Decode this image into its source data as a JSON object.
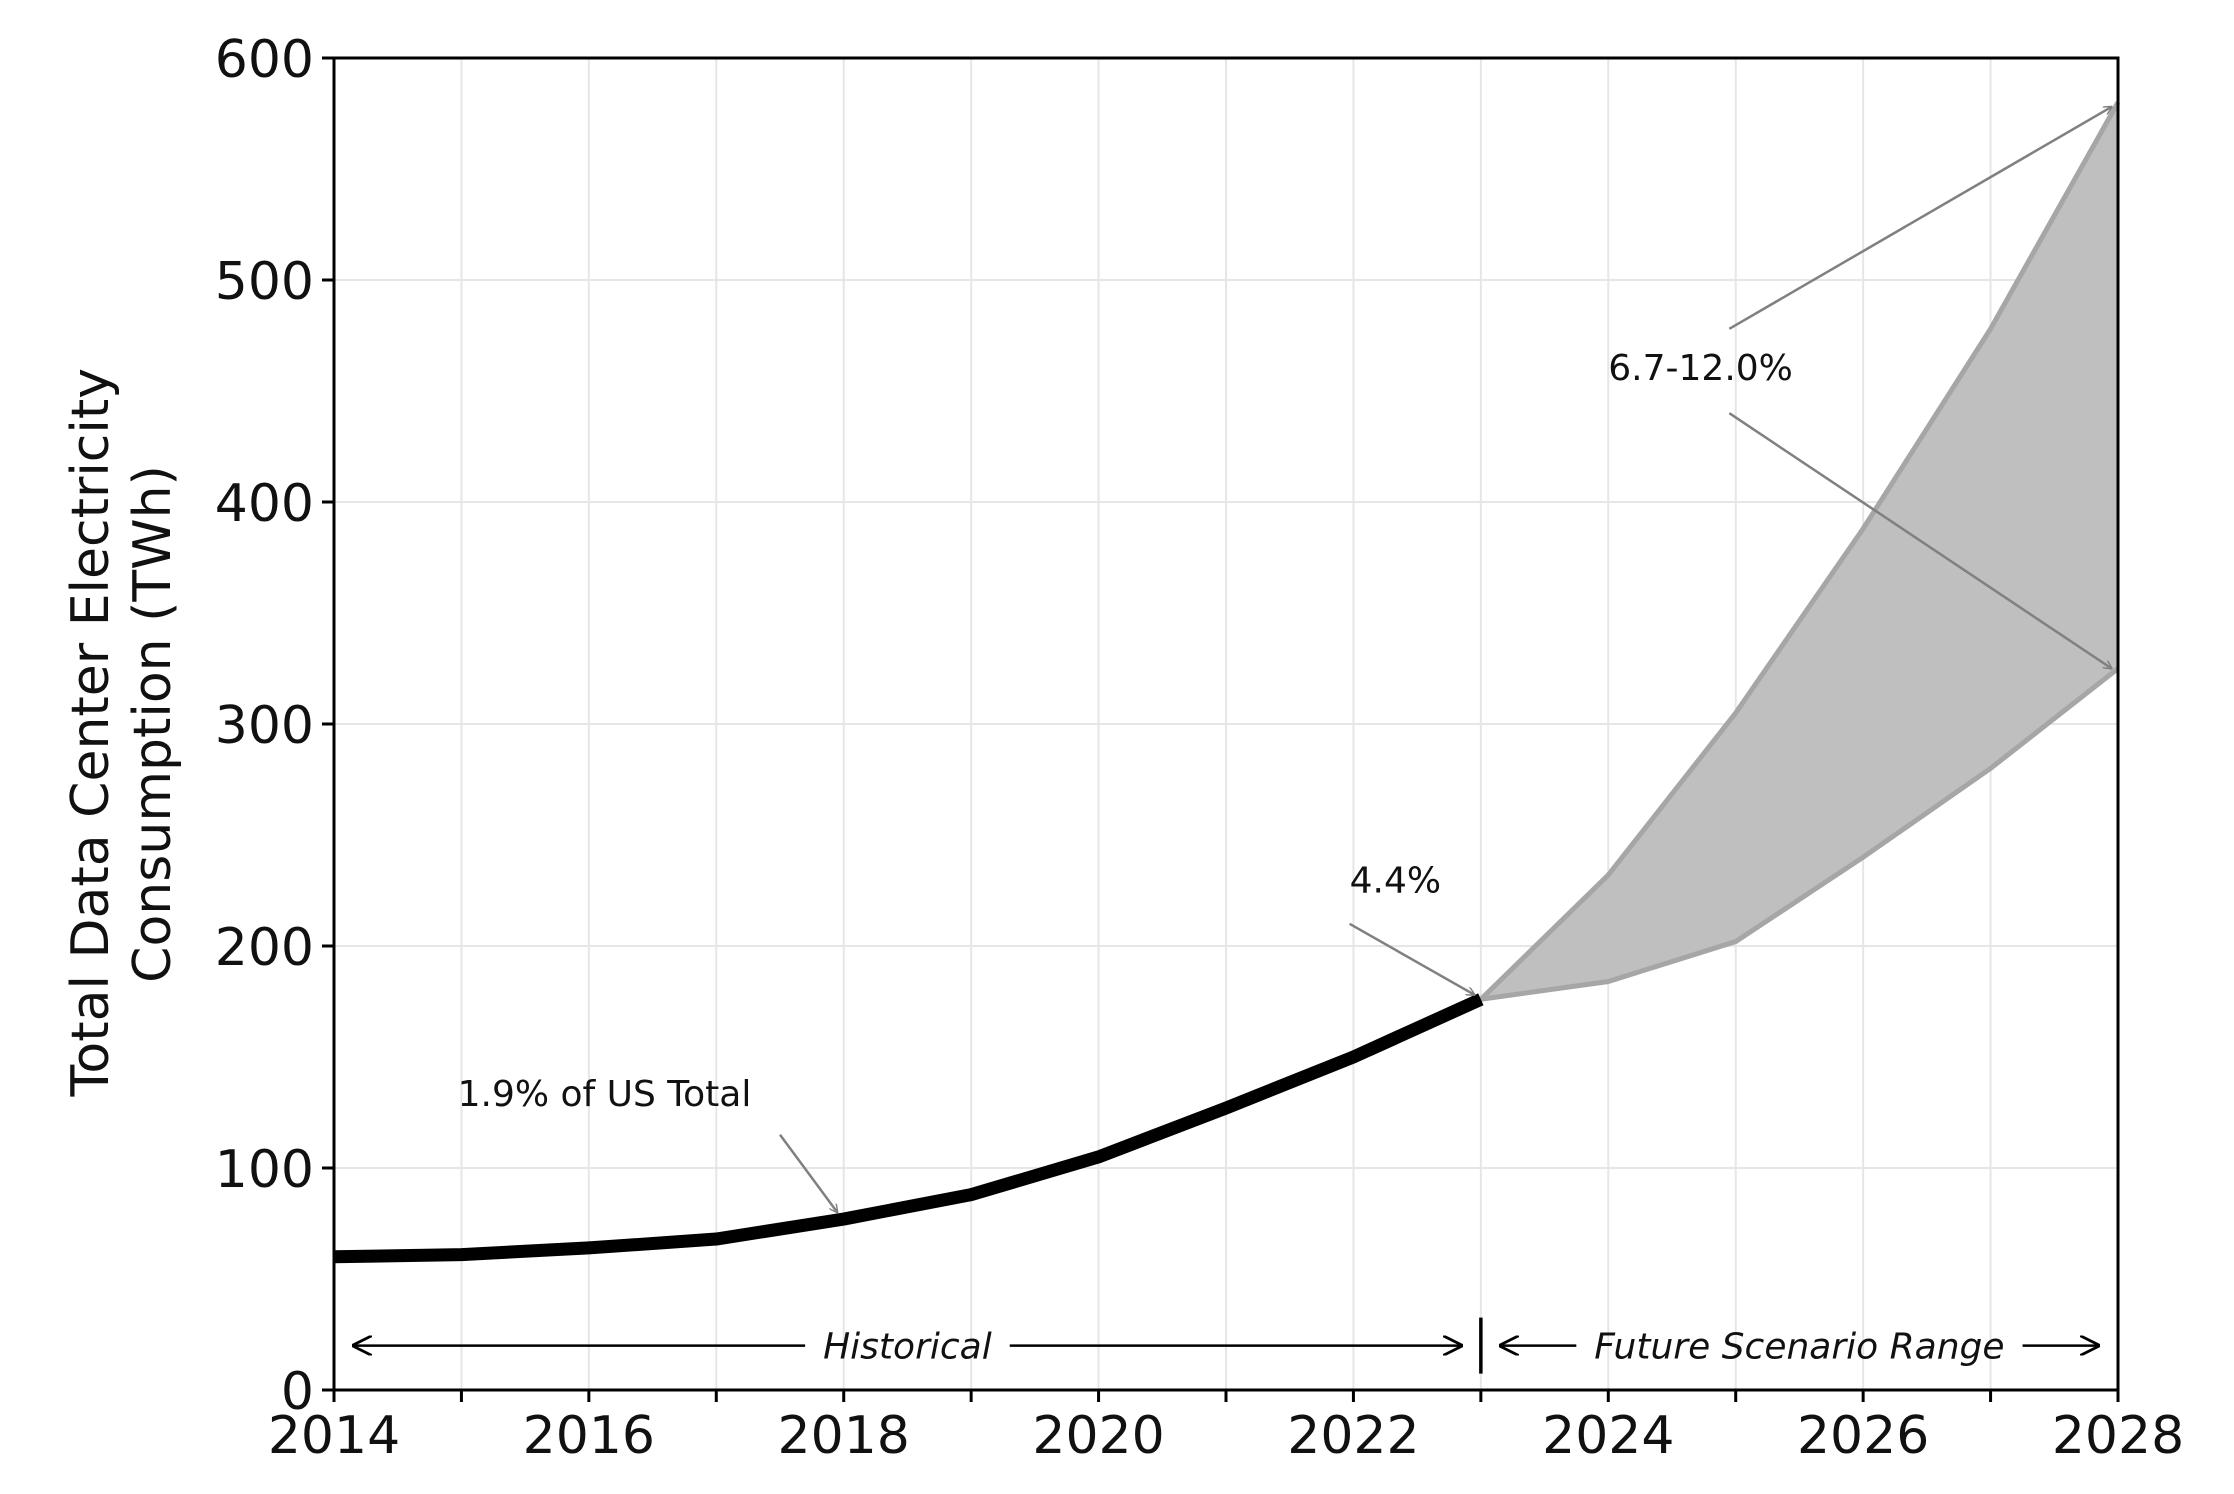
{
  "chart_data": {
    "type": "area",
    "ylabel_lines": [
      "Total Data Center Electricity",
      "Consumption (TWh)"
    ],
    "xlim": [
      2014,
      2028
    ],
    "ylim": [
      0,
      600
    ],
    "x_ticks": [
      2014,
      2016,
      2018,
      2020,
      2022,
      2024,
      2026,
      2028
    ],
    "y_ticks": [
      0,
      100,
      200,
      300,
      400,
      500,
      600
    ],
    "grid": true,
    "colors": {
      "historical_line": "#000000",
      "band_fill": "#bfbfbf",
      "band_edge": "#a6a6a6",
      "arrow": "#808080",
      "grid": "#e6e6e6"
    },
    "historical": {
      "x": [
        2014,
        2015,
        2016,
        2017,
        2018,
        2019,
        2020,
        2021,
        2022,
        2023
      ],
      "y": [
        60,
        61,
        64,
        68,
        77,
        88,
        105,
        127,
        150,
        176
      ]
    },
    "scenario_range": {
      "x": [
        2023,
        2024,
        2025,
        2026,
        2027,
        2028
      ],
      "high": [
        176,
        232,
        305,
        388,
        478,
        580
      ],
      "low": [
        176,
        184,
        202,
        240,
        280,
        325
      ]
    },
    "annotations": [
      {
        "text": "1.9% of US Total",
        "text_at": [
          2014.97,
          128
        ],
        "arrow_from": [
          2017.5,
          115
        ],
        "arrow_to": [
          2017.95,
          80
        ]
      },
      {
        "text": "4.4%",
        "text_at": [
          2021.97,
          224
        ],
        "arrow_from": [
          2021.97,
          210
        ],
        "arrow_to": [
          2022.95,
          178
        ]
      },
      {
        "text": "6.7-12.0%",
        "text_at": [
          2024.0,
          455
        ],
        "arrow_from": [
          2024.95,
          478
        ],
        "arrow_to": [
          2027.95,
          578
        ]
      },
      {
        "text": "",
        "text_at": null,
        "arrow_from": [
          2024.95,
          440
        ],
        "arrow_to": [
          2027.95,
          325
        ]
      }
    ],
    "regions": [
      {
        "label": "Historical",
        "x_start": 2014,
        "x_end": 2023
      },
      {
        "label": "Future Scenario Range",
        "x_start": 2023,
        "x_end": 2028
      }
    ],
    "region_label_y": 20
  }
}
